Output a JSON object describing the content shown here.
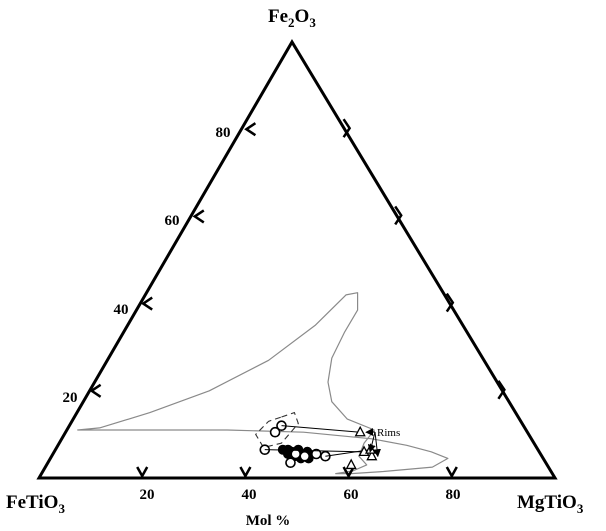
{
  "chart_data": {
    "type": "scatter",
    "subtype": "ternary",
    "vertices": {
      "top": {
        "pre": "Fe",
        "sub1": "2",
        "mid": "O",
        "sub2": "3"
      },
      "left": {
        "pre": "FeTiO",
        "sub1": "3"
      },
      "right": {
        "pre": "MgTiO",
        "sub1": "3"
      }
    },
    "axis_title": "Mol %",
    "bottom_ticks": [
      "20",
      "40",
      "60",
      "80"
    ],
    "left_ticks": [
      "20",
      "40",
      "60",
      "80"
    ],
    "annotation": "Rims",
    "outline_field": [
      [
        59.5,
        11
      ],
      [
        53,
        13.5
      ],
      [
        48,
        17.5
      ],
      [
        45,
        22
      ],
      [
        43,
        27.5
      ],
      [
        42.5,
        33.5
      ],
      [
        42.5,
        38.5
      ],
      [
        40.5,
        42.5
      ],
      [
        38.5,
        42
      ],
      [
        36,
        35
      ],
      [
        31,
        27
      ],
      [
        23,
        20
      ],
      [
        14,
        15
      ],
      [
        6,
        11.5
      ],
      [
        2,
        11
      ],
      [
        2,
        11
      ],
      [
        31,
        11
      ],
      [
        46,
        10.5
      ],
      [
        60,
        9
      ],
      [
        67.5,
        7.5
      ],
      [
        73,
        6
      ],
      [
        77,
        4.5
      ],
      [
        75,
        2.5
      ],
      [
        66,
        1.5
      ],
      [
        60,
        1.0
      ],
      [
        57,
        1.0
      ],
      [
        60,
        1.6
      ],
      [
        62,
        3
      ],
      [
        59.5,
        5
      ],
      [
        59,
        8
      ],
      [
        59.5,
        11
      ]
    ],
    "dashed_field": [
      [
        40,
        14
      ],
      [
        42,
        15
      ],
      [
        44,
        12.5
      ],
      [
        43,
        8
      ],
      [
        40,
        7
      ],
      [
        37,
        10
      ],
      [
        38,
        13
      ],
      [
        40,
        14
      ]
    ],
    "cores_open": [
      [
        41,
        12
      ],
      [
        40.5,
        10.5
      ],
      [
        40.5,
        6.5
      ],
      [
        47,
        5.5
      ],
      [
        49,
        5.0
      ],
      [
        51,
        5.5
      ],
      [
        53,
        5.0
      ],
      [
        47,
        3.5
      ]
    ],
    "cores_filled": [
      [
        44,
        6.5
      ],
      [
        45,
        6.5
      ],
      [
        46,
        6.0
      ],
      [
        47,
        6.5
      ],
      [
        48,
        5.5
      ],
      [
        49,
        6.0
      ],
      [
        45.5,
        5.5
      ],
      [
        47,
        5.0
      ],
      [
        48.5,
        4.5
      ],
      [
        50,
        4.5
      ]
    ],
    "rims": [
      [
        57,
        10.5
      ],
      [
        60,
        6.0
      ],
      [
        62,
        5.0
      ],
      [
        59,
        3.0
      ],
      [
        61,
        6.5
      ]
    ]
  }
}
